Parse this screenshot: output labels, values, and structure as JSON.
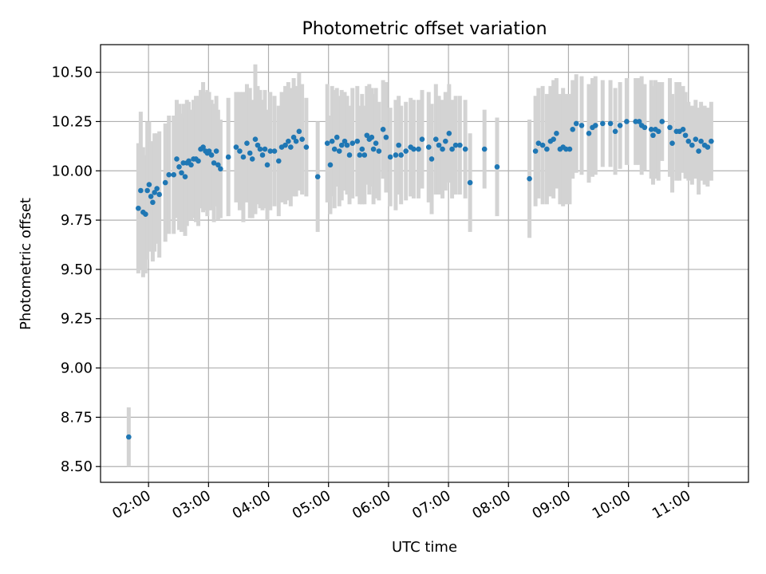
{
  "chart_data": {
    "type": "scatter",
    "title": "Photometric offset variation",
    "xlabel": "UTC time",
    "ylabel": "Photometric offset",
    "x_unit": "hours UTC",
    "xlim": [
      1.2,
      12.0
    ],
    "ylim": [
      8.42,
      10.64
    ],
    "x_ticks": [
      2,
      3,
      4,
      5,
      6,
      7,
      8,
      9,
      10,
      11
    ],
    "x_tick_labels": [
      "02:00",
      "03:00",
      "04:00",
      "05:00",
      "06:00",
      "07:00",
      "08:00",
      "09:00",
      "10:00",
      "11:00"
    ],
    "y_ticks": [
      8.5,
      8.75,
      9.0,
      9.25,
      9.5,
      9.75,
      10.0,
      10.25,
      10.5
    ],
    "y_tick_labels": [
      "8.50",
      "8.75",
      "9.00",
      "9.25",
      "9.50",
      "9.75",
      "10.00",
      "10.25",
      "10.50"
    ],
    "grid": true,
    "colors": {
      "point": "#1f77b4",
      "errorbar": "#d3d3d3",
      "grid": "#b0b0b0"
    },
    "series": [
      {
        "points": [
          [
            1.67,
            8.65,
            0.15
          ],
          [
            1.83,
            9.81,
            0.33
          ],
          [
            1.87,
            9.9,
            0.4
          ],
          [
            1.91,
            9.79,
            0.33
          ],
          [
            1.95,
            9.78,
            0.3
          ],
          [
            1.98,
            9.9,
            0.35
          ],
          [
            2.01,
            9.93,
            0.32
          ],
          [
            2.04,
            9.87,
            0.28
          ],
          [
            2.07,
            9.84,
            0.3
          ],
          [
            2.1,
            9.89,
            0.3
          ],
          [
            2.14,
            9.91,
            0.28
          ],
          [
            2.18,
            9.88,
            0.32
          ],
          [
            2.28,
            9.94,
            0.3
          ],
          [
            2.34,
            9.98,
            0.3
          ],
          [
            2.42,
            9.98,
            0.3
          ],
          [
            2.47,
            10.06,
            0.3
          ],
          [
            2.51,
            10.02,
            0.32
          ],
          [
            2.55,
            9.99,
            0.3
          ],
          [
            2.58,
            10.04,
            0.3
          ],
          [
            2.61,
            9.97,
            0.3
          ],
          [
            2.64,
            10.04,
            0.32
          ],
          [
            2.67,
            10.05,
            0.3
          ],
          [
            2.71,
            10.03,
            0.28
          ],
          [
            2.75,
            10.06,
            0.3
          ],
          [
            2.79,
            10.06,
            0.32
          ],
          [
            2.83,
            10.05,
            0.33
          ],
          [
            2.87,
            10.11,
            0.3
          ],
          [
            2.91,
            10.12,
            0.33
          ],
          [
            2.95,
            10.1,
            0.3
          ],
          [
            2.98,
            10.09,
            0.32
          ],
          [
            3.01,
            10.1,
            0.3
          ],
          [
            3.05,
            10.08,
            0.28
          ],
          [
            3.09,
            10.04,
            0.3
          ],
          [
            3.13,
            10.1,
            0.28
          ],
          [
            3.16,
            10.03,
            0.28
          ],
          [
            3.2,
            10.01,
            0.25
          ],
          [
            3.33,
            10.07,
            0.3
          ],
          [
            3.46,
            10.12,
            0.28
          ],
          [
            3.52,
            10.1,
            0.3
          ],
          [
            3.58,
            10.07,
            0.33
          ],
          [
            3.64,
            10.14,
            0.3
          ],
          [
            3.69,
            10.09,
            0.33
          ],
          [
            3.73,
            10.06,
            0.3
          ],
          [
            3.78,
            10.16,
            0.38
          ],
          [
            3.82,
            10.13,
            0.3
          ],
          [
            3.86,
            10.11,
            0.3
          ],
          [
            3.9,
            10.08,
            0.28
          ],
          [
            3.94,
            10.11,
            0.3
          ],
          [
            3.98,
            10.03,
            0.28
          ],
          [
            4.03,
            10.1,
            0.3
          ],
          [
            4.1,
            10.1,
            0.28
          ],
          [
            4.17,
            10.05,
            0.28
          ],
          [
            4.22,
            10.12,
            0.28
          ],
          [
            4.28,
            10.13,
            0.3
          ],
          [
            4.33,
            10.15,
            0.3
          ],
          [
            4.37,
            10.12,
            0.3
          ],
          [
            4.42,
            10.17,
            0.3
          ],
          [
            4.46,
            10.15,
            0.28
          ],
          [
            4.51,
            10.2,
            0.3
          ],
          [
            4.56,
            10.16,
            0.28
          ],
          [
            4.63,
            10.12,
            0.25
          ],
          [
            4.82,
            9.97,
            0.28
          ],
          [
            4.98,
            10.14,
            0.3
          ],
          [
            5.03,
            10.03,
            0.25
          ],
          [
            5.06,
            10.15,
            0.28
          ],
          [
            5.1,
            10.11,
            0.3
          ],
          [
            5.14,
            10.17,
            0.25
          ],
          [
            5.18,
            10.1,
            0.28
          ],
          [
            5.22,
            10.13,
            0.28
          ],
          [
            5.27,
            10.15,
            0.25
          ],
          [
            5.31,
            10.13,
            0.25
          ],
          [
            5.35,
            10.08,
            0.25
          ],
          [
            5.4,
            10.14,
            0.28
          ],
          [
            5.48,
            10.15,
            0.28
          ],
          [
            5.52,
            10.08,
            0.25
          ],
          [
            5.56,
            10.11,
            0.28
          ],
          [
            5.6,
            10.08,
            0.25
          ],
          [
            5.64,
            10.18,
            0.25
          ],
          [
            5.68,
            10.16,
            0.28
          ],
          [
            5.72,
            10.17,
            0.25
          ],
          [
            5.75,
            10.11,
            0.28
          ],
          [
            5.79,
            10.14,
            0.28
          ],
          [
            5.84,
            10.1,
            0.25
          ],
          [
            5.91,
            10.21,
            0.25
          ],
          [
            5.96,
            10.17,
            0.28
          ],
          [
            6.03,
            10.07,
            0.25
          ],
          [
            6.12,
            10.08,
            0.28
          ],
          [
            6.17,
            10.13,
            0.25
          ],
          [
            6.21,
            10.08,
            0.25
          ],
          [
            6.29,
            10.1,
            0.25
          ],
          [
            6.37,
            10.12,
            0.25
          ],
          [
            6.42,
            10.11,
            0.25
          ],
          [
            6.5,
            10.11,
            0.25
          ],
          [
            6.56,
            10.16,
            0.25
          ],
          [
            6.67,
            10.12,
            0.28
          ],
          [
            6.72,
            10.06,
            0.28
          ],
          [
            6.79,
            10.16,
            0.28
          ],
          [
            6.84,
            10.13,
            0.25
          ],
          [
            6.9,
            10.11,
            0.25
          ],
          [
            6.95,
            10.15,
            0.25
          ],
          [
            7.01,
            10.19,
            0.25
          ],
          [
            7.06,
            10.11,
            0.25
          ],
          [
            7.12,
            10.13,
            0.25
          ],
          [
            7.19,
            10.13,
            0.25
          ],
          [
            7.28,
            10.11,
            0.25
          ],
          [
            7.36,
            9.94,
            0.25
          ],
          [
            7.6,
            10.11,
            0.2
          ],
          [
            7.81,
            10.02,
            0.25
          ],
          [
            8.35,
            9.96,
            0.3
          ],
          [
            8.45,
            10.1,
            0.28
          ],
          [
            8.5,
            10.14,
            0.28
          ],
          [
            8.57,
            10.13,
            0.3
          ],
          [
            8.64,
            10.11,
            0.28
          ],
          [
            8.7,
            10.15,
            0.28
          ],
          [
            8.75,
            10.16,
            0.3
          ],
          [
            8.8,
            10.19,
            0.28
          ],
          [
            8.86,
            10.11,
            0.28
          ],
          [
            8.91,
            10.12,
            0.3
          ],
          [
            8.96,
            10.11,
            0.28
          ],
          [
            9.02,
            10.11,
            0.28
          ],
          [
            9.07,
            10.21,
            0.25
          ],
          [
            9.13,
            10.24,
            0.25
          ],
          [
            9.22,
            10.23,
            0.25
          ],
          [
            9.34,
            10.19,
            0.25
          ],
          [
            9.4,
            10.22,
            0.25
          ],
          [
            9.45,
            10.23,
            0.25
          ],
          [
            9.57,
            10.24,
            0.22
          ],
          [
            9.7,
            10.24,
            0.22
          ],
          [
            9.78,
            10.2,
            0.22
          ],
          [
            9.86,
            10.23,
            0.22
          ],
          [
            9.97,
            10.25,
            0.22
          ],
          [
            10.12,
            10.25,
            0.22
          ],
          [
            10.18,
            10.25,
            0.22
          ],
          [
            10.22,
            10.23,
            0.25
          ],
          [
            10.27,
            10.22,
            0.22
          ],
          [
            10.38,
            10.21,
            0.25
          ],
          [
            10.41,
            10.18,
            0.25
          ],
          [
            10.45,
            10.21,
            0.25
          ],
          [
            10.5,
            10.2,
            0.25
          ],
          [
            10.56,
            10.25,
            0.2
          ],
          [
            10.69,
            10.22,
            0.25
          ],
          [
            10.73,
            10.14,
            0.25
          ],
          [
            10.8,
            10.2,
            0.25
          ],
          [
            10.85,
            10.2,
            0.25
          ],
          [
            10.91,
            10.21,
            0.22
          ],
          [
            10.95,
            10.18,
            0.22
          ],
          [
            11.0,
            10.15,
            0.2
          ],
          [
            11.06,
            10.13,
            0.2
          ],
          [
            11.12,
            10.16,
            0.2
          ],
          [
            11.17,
            10.1,
            0.22
          ],
          [
            11.21,
            10.15,
            0.2
          ],
          [
            11.27,
            10.13,
            0.2
          ],
          [
            11.32,
            10.12,
            0.2
          ],
          [
            11.38,
            10.15,
            0.2
          ]
        ]
      }
    ]
  }
}
